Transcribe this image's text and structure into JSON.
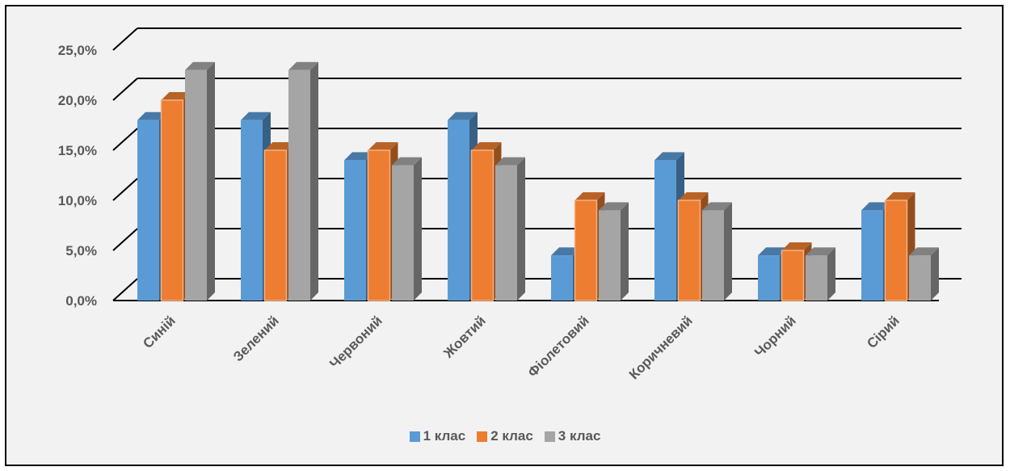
{
  "chart_data": {
    "type": "bar",
    "categories": [
      "Синій",
      "Зелений",
      "Червоний",
      "Жовтий",
      "Фіолетовий",
      "Коричневий",
      "Чорний",
      "Сірий"
    ],
    "series": [
      {
        "name": "1 клас",
        "color": "#5b9bd5",
        "values": [
          18.0,
          18.0,
          14.0,
          18.0,
          4.5,
          14.0,
          4.5,
          9.0
        ]
      },
      {
        "name": "2 клас",
        "color": "#ed7d31",
        "values": [
          20.0,
          15.0,
          15.0,
          15.0,
          10.0,
          10.0,
          5.0,
          10.0
        ]
      },
      {
        "name": "3 клас",
        "color": "#a5a5a5",
        "values": [
          23.0,
          23.0,
          13.5,
          13.5,
          9.0,
          9.0,
          4.5,
          4.5
        ]
      }
    ],
    "yticks": [
      "0,0%",
      "5,0%",
      "10,0%",
      "15,0%",
      "20,0%",
      "25,0%"
    ],
    "ylim": [
      0,
      25
    ],
    "grid": true,
    "style": "3d-clustered-column",
    "legend_position": "bottom"
  }
}
